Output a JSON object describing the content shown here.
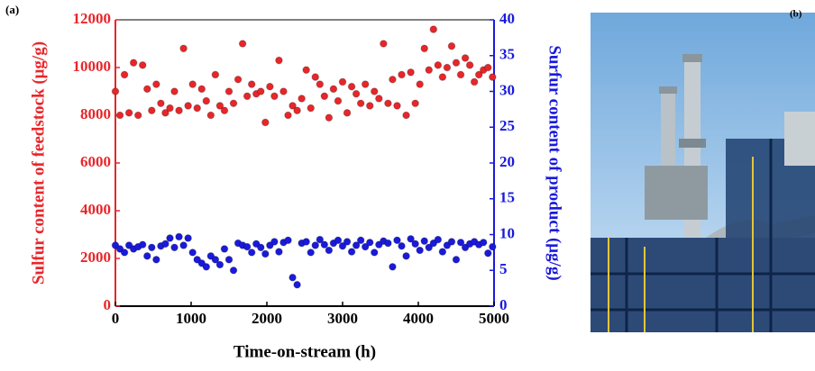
{
  "panel_a": "(a)",
  "panel_b": "(b)",
  "chart_data": {
    "type": "scatter",
    "xlabel": "Time-on-stream (h)",
    "ylabel": "Sulfur content of feedstock (μg/g)",
    "y2label": "Surfur content of product (μg/g)",
    "xlim": [
      0,
      5000
    ],
    "xticks": [
      0,
      1000,
      2000,
      3000,
      4000,
      5000
    ],
    "ylim": [
      0,
      12000
    ],
    "yticks": [
      0,
      2000,
      4000,
      6000,
      8000,
      10000,
      12000
    ],
    "y2lim": [
      0,
      40
    ],
    "y2ticks": [
      0,
      5,
      10,
      15,
      20,
      25,
      30,
      35,
      40
    ],
    "series": [
      {
        "color": "#e8262a",
        "axis": "y",
        "x": [
          0,
          60,
          120,
          180,
          240,
          300,
          360,
          420,
          480,
          540,
          600,
          660,
          720,
          780,
          840,
          900,
          960,
          1020,
          1080,
          1140,
          1200,
          1260,
          1320,
          1380,
          1440,
          1500,
          1560,
          1620,
          1680,
          1740,
          1800,
          1860,
          1920,
          1980,
          2040,
          2100,
          2160,
          2220,
          2280,
          2340,
          2400,
          2460,
          2520,
          2580,
          2640,
          2700,
          2760,
          2820,
          2880,
          2940,
          3000,
          3060,
          3120,
          3180,
          3240,
          3300,
          3360,
          3420,
          3480,
          3540,
          3600,
          3660,
          3720,
          3780,
          3840,
          3900,
          3960,
          4020,
          4080,
          4140,
          4200,
          4260,
          4320,
          4380,
          4440,
          4500,
          4560,
          4620,
          4680,
          4740,
          4800,
          4860,
          4920,
          4980
        ],
        "values": [
          9000,
          8000,
          9700,
          8100,
          10200,
          8000,
          10100,
          9100,
          8200,
          9300,
          8500,
          8100,
          8300,
          9000,
          8200,
          10800,
          8400,
          9300,
          8300,
          9100,
          8600,
          8000,
          9700,
          8400,
          8200,
          9000,
          8500,
          9500,
          11000,
          8800,
          9300,
          8900,
          9000,
          7700,
          9200,
          8800,
          10300,
          9000,
          8000,
          8400,
          8200,
          8700,
          9900,
          8300,
          9600,
          9300,
          8800,
          7900,
          9100,
          8600,
          9400,
          8100,
          9200,
          8900,
          8500,
          9300,
          8400,
          9000,
          8700,
          11000,
          8500,
          9500,
          8400,
          9700,
          8000,
          9800,
          8500,
          9300,
          10800,
          9900,
          11600,
          10100,
          9600,
          10000,
          10900,
          10200,
          9700,
          10400,
          10100,
          9400,
          9700,
          9900,
          10000,
          9600
        ]
      },
      {
        "color": "#1a1adc",
        "axis": "y2",
        "x": [
          0,
          60,
          120,
          180,
          240,
          300,
          360,
          420,
          480,
          540,
          600,
          660,
          720,
          780,
          840,
          900,
          960,
          1020,
          1080,
          1140,
          1200,
          1260,
          1320,
          1380,
          1440,
          1500,
          1560,
          1620,
          1680,
          1740,
          1800,
          1860,
          1920,
          1980,
          2040,
          2100,
          2160,
          2220,
          2280,
          2340,
          2400,
          2460,
          2520,
          2580,
          2640,
          2700,
          2760,
          2820,
          2880,
          2940,
          3000,
          3060,
          3120,
          3180,
          3240,
          3300,
          3360,
          3420,
          3480,
          3540,
          3600,
          3660,
          3720,
          3780,
          3840,
          3900,
          3960,
          4020,
          4080,
          4140,
          4200,
          4260,
          4320,
          4380,
          4440,
          4500,
          4560,
          4620,
          4680,
          4740,
          4800,
          4860,
          4920,
          4980
        ],
        "values": [
          8.5,
          8,
          7.5,
          8.5,
          8,
          8.3,
          8.6,
          7,
          8.2,
          6.5,
          8.4,
          8.7,
          9.5,
          8.2,
          9.7,
          8.5,
          9.5,
          7.5,
          6.5,
          6,
          5.5,
          7,
          6.5,
          5.8,
          8,
          6.5,
          5,
          8.8,
          8.5,
          8.3,
          7.5,
          8.7,
          8.2,
          7.3,
          8.5,
          9,
          7.6,
          8.9,
          9.2,
          4,
          3,
          8.8,
          9,
          7.5,
          8.5,
          9.3,
          8.6,
          7.8,
          8.8,
          9.2,
          8.4,
          9,
          7.6,
          8.5,
          9.2,
          8.3,
          8.9,
          7.5,
          8.6,
          9.1,
          8.8,
          5.5,
          9.2,
          8.4,
          7,
          9.4,
          8.7,
          7.8,
          9.1,
          8.2,
          8.8,
          9.3,
          7.6,
          8.5,
          9,
          6.5,
          8.9,
          8.2,
          8.7,
          9,
          8.6,
          8.9,
          7.4,
          8.3
        ]
      }
    ]
  }
}
